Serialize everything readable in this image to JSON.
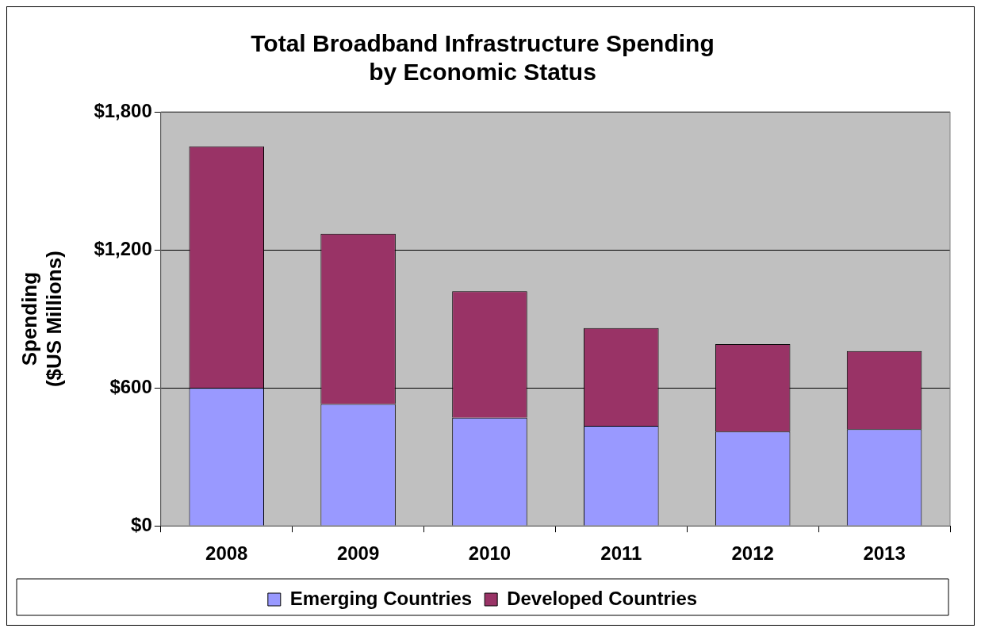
{
  "chart_data": {
    "type": "bar",
    "title": "Total Broadband Infrastructure Spending\nby Economic Status",
    "ylabel": "Spending\n($US Millions)",
    "categories": [
      "2008",
      "2009",
      "2010",
      "2011",
      "2012",
      "2013"
    ],
    "stacked": true,
    "series": [
      {
        "name": "Emerging Countries",
        "color": "#9999ff",
        "values": [
          600,
          530,
          470,
          435,
          410,
          420
        ]
      },
      {
        "name": "Developed Countries",
        "color": "#993366",
        "values": [
          1050,
          740,
          550,
          425,
          380,
          340
        ]
      }
    ],
    "ylim": [
      0,
      1800
    ],
    "yticks": [
      {
        "value": 0,
        "label": "$0"
      },
      {
        "value": 600,
        "label": "$600"
      },
      {
        "value": 1200,
        "label": "$1,200"
      },
      {
        "value": 1800,
        "label": "$1,800"
      }
    ],
    "grid": "y",
    "legend": "bottom"
  }
}
